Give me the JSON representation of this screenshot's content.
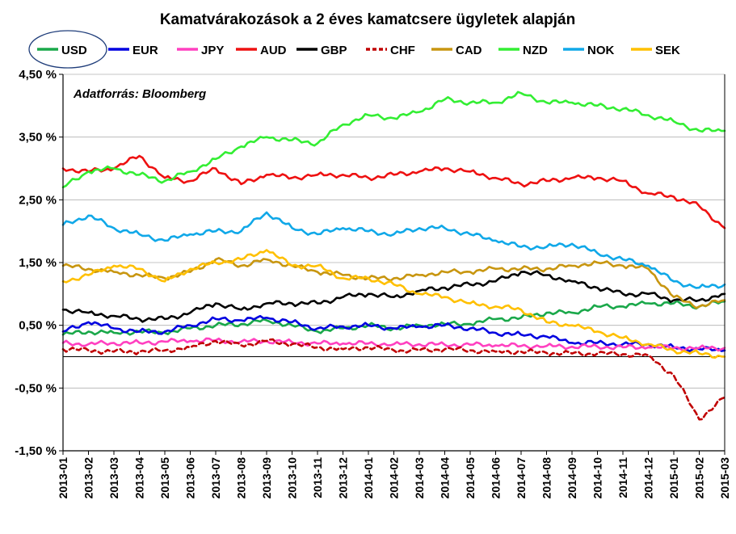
{
  "chart_data": {
    "type": "line",
    "title": "Kamatvárakozások a 2 éves kamatcsere ügyletek alapján",
    "source_note": "Adatforrás: Bloomberg",
    "xlabel": "",
    "ylabel": "",
    "ylim": [
      -1.5,
      4.5
    ],
    "yticks": [
      {
        "value": 4.5,
        "label": "4,50 %"
      },
      {
        "value": 3.5,
        "label": "3,50 %"
      },
      {
        "value": 2.5,
        "label": "2,50 %"
      },
      {
        "value": 1.5,
        "label": "1,50 %"
      },
      {
        "value": 0.5,
        "label": "0,50 %"
      },
      {
        "value": -0.5,
        "label": "-0,50 %"
      },
      {
        "value": -1.5,
        "label": "-1,50 %"
      }
    ],
    "grid": true,
    "legend_position": "top",
    "highlighted_legend_entry": "USD",
    "x": [
      "2013-01",
      "2013-02",
      "2013-03",
      "2013-04",
      "2013-05",
      "2013-06",
      "2013-07",
      "2013-08",
      "2013-09",
      "2013-10",
      "2013-11",
      "2013-12",
      "2014-01",
      "2014-02",
      "2014-03",
      "2014-04",
      "2014-05",
      "2014-06",
      "2014-07",
      "2014-08",
      "2014-09",
      "2014-10",
      "2014-11",
      "2014-12",
      "2015-01",
      "2015-02",
      "2015-03"
    ],
    "series": [
      {
        "name": "USD",
        "color": "#1aa84a",
        "dash": false,
        "values": [
          0.35,
          0.4,
          0.38,
          0.4,
          0.38,
          0.45,
          0.5,
          0.52,
          0.58,
          0.5,
          0.4,
          0.45,
          0.5,
          0.45,
          0.5,
          0.52,
          0.52,
          0.6,
          0.62,
          0.7,
          0.7,
          0.8,
          0.8,
          0.85,
          0.85,
          0.8,
          0.88
        ]
      },
      {
        "name": "EUR",
        "color": "#0000e0",
        "dash": false,
        "values": [
          0.4,
          0.55,
          0.45,
          0.4,
          0.4,
          0.5,
          0.6,
          0.58,
          0.62,
          0.55,
          0.45,
          0.48,
          0.5,
          0.45,
          0.48,
          0.5,
          0.45,
          0.38,
          0.35,
          0.32,
          0.22,
          0.22,
          0.2,
          0.2,
          0.15,
          0.12,
          0.1
        ]
      },
      {
        "name": "JPY",
        "color": "#ff40c0",
        "dash": false,
        "values": [
          0.22,
          0.2,
          0.22,
          0.22,
          0.24,
          0.25,
          0.26,
          0.24,
          0.25,
          0.23,
          0.21,
          0.21,
          0.21,
          0.2,
          0.2,
          0.19,
          0.19,
          0.18,
          0.17,
          0.17,
          0.16,
          0.16,
          0.15,
          0.15,
          0.14,
          0.14,
          0.14
        ]
      },
      {
        "name": "AUD",
        "color": "#ee1111",
        "dash": false,
        "values": [
          3.0,
          2.95,
          3.0,
          3.2,
          2.85,
          2.8,
          3.0,
          2.75,
          2.9,
          2.85,
          2.9,
          2.9,
          2.85,
          2.9,
          2.95,
          3.0,
          2.95,
          2.85,
          2.75,
          2.8,
          2.85,
          2.85,
          2.8,
          2.6,
          2.55,
          2.4,
          2.05
        ]
      },
      {
        "name": "GBP",
        "color": "#000000",
        "dash": false,
        "values": [
          0.75,
          0.7,
          0.65,
          0.6,
          0.6,
          0.7,
          0.85,
          0.75,
          0.85,
          0.85,
          0.85,
          0.95,
          1.0,
          0.95,
          1.05,
          1.1,
          1.15,
          1.2,
          1.35,
          1.3,
          1.2,
          1.1,
          1.0,
          1.0,
          0.9,
          0.9,
          1.0
        ]
      },
      {
        "name": "CHF",
        "color": "#c00000",
        "dash": true,
        "values": [
          0.12,
          0.1,
          0.08,
          0.08,
          0.1,
          0.15,
          0.25,
          0.18,
          0.25,
          0.2,
          0.15,
          0.12,
          0.15,
          0.1,
          0.1,
          0.12,
          0.1,
          0.08,
          0.08,
          0.06,
          0.05,
          0.05,
          0.04,
          0.02,
          -0.3,
          -1.0,
          -0.65
        ]
      },
      {
        "name": "CAD",
        "color": "#c89610",
        "dash": false,
        "values": [
          1.45,
          1.4,
          1.35,
          1.3,
          1.25,
          1.35,
          1.55,
          1.45,
          1.55,
          1.45,
          1.35,
          1.3,
          1.25,
          1.25,
          1.3,
          1.35,
          1.35,
          1.4,
          1.4,
          1.4,
          1.45,
          1.5,
          1.45,
          1.4,
          0.95,
          0.8,
          0.9
        ]
      },
      {
        "name": "NZD",
        "color": "#33ee33",
        "dash": false,
        "values": [
          2.7,
          2.95,
          3.0,
          2.9,
          2.8,
          2.95,
          3.15,
          3.35,
          3.5,
          3.45,
          3.4,
          3.7,
          3.85,
          3.8,
          3.9,
          4.1,
          4.05,
          4.05,
          4.2,
          4.05,
          4.05,
          4.0,
          3.95,
          3.85,
          3.75,
          3.6,
          3.6
        ]
      },
      {
        "name": "NOK",
        "color": "#10a8e8",
        "dash": false,
        "values": [
          2.1,
          2.25,
          2.05,
          1.95,
          1.85,
          1.95,
          2.0,
          2.0,
          2.3,
          2.05,
          1.95,
          2.05,
          2.0,
          1.95,
          2.05,
          2.05,
          1.95,
          1.85,
          1.75,
          1.75,
          1.8,
          1.65,
          1.55,
          1.45,
          1.2,
          1.1,
          1.15
        ]
      },
      {
        "name": "SEK",
        "color": "#ffc000",
        "dash": false,
        "values": [
          1.2,
          1.3,
          1.45,
          1.4,
          1.2,
          1.4,
          1.5,
          1.55,
          1.7,
          1.45,
          1.45,
          1.25,
          1.25,
          1.15,
          1.0,
          0.95,
          0.85,
          0.8,
          0.75,
          0.55,
          0.5,
          0.4,
          0.3,
          0.2,
          0.1,
          0.05,
          0.0
        ]
      }
    ]
  }
}
